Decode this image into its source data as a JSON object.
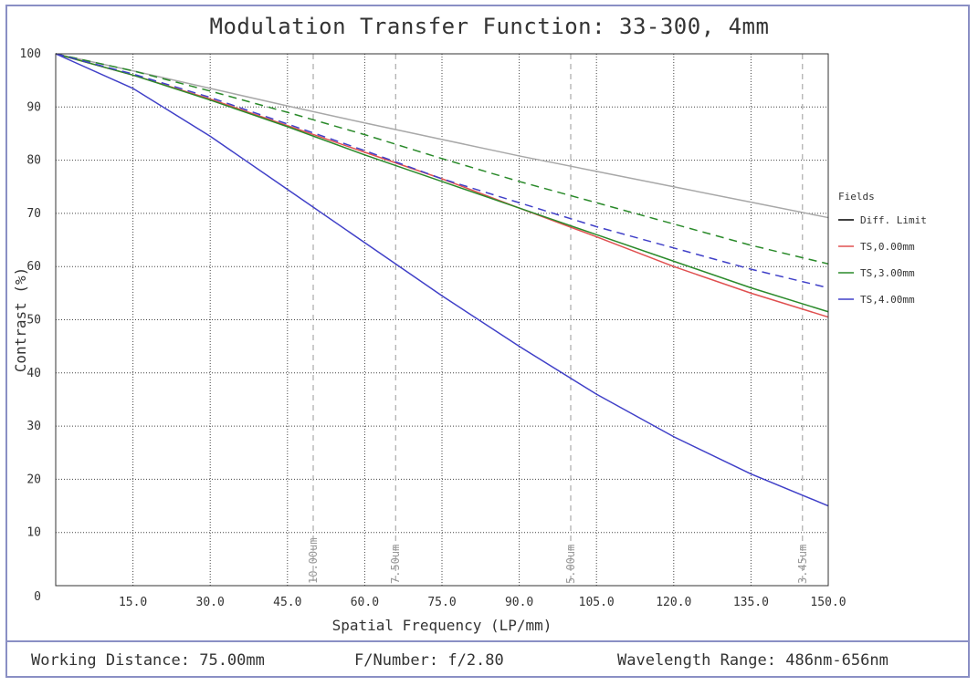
{
  "chart_data": {
    "type": "line",
    "title": "Modulation Transfer Function: 33-300, 4mm",
    "xlabel": "Spatial Frequency (LP/mm)",
    "ylabel": "Contrast (%)",
    "xlim": [
      0,
      150
    ],
    "ylim": [
      0,
      100
    ],
    "xticks": [
      15,
      30,
      45,
      60,
      75,
      90,
      105,
      120,
      135,
      150
    ],
    "xtick_labels": [
      "15.0",
      "30.0",
      "45.0",
      "60.0",
      "75.0",
      "90.0",
      "105.0",
      "120.0",
      "135.0",
      "150.0"
    ],
    "yticks": [
      0,
      10,
      20,
      30,
      40,
      50,
      60,
      70,
      80,
      90,
      100
    ],
    "ytick_labels": [
      "0",
      "10",
      "20",
      "30",
      "40",
      "50",
      "60",
      "70",
      "80",
      "90",
      "100"
    ],
    "grid": true,
    "legend_title": "Fields",
    "legend_position": "right",
    "legend": [
      {
        "label": "Diff. Limit",
        "color": "#000000",
        "dash": "solid"
      },
      {
        "label": "TS,0.00mm",
        "color": "#e05050",
        "dash": "solid"
      },
      {
        "label": "TS,3.00mm",
        "color": "#2a8a2a",
        "dash": "solid"
      },
      {
        "label": "TS,4.00mm",
        "color": "#4040c8",
        "dash": "solid"
      }
    ],
    "x": [
      0,
      15,
      30,
      45,
      60,
      75,
      90,
      105,
      120,
      135,
      150
    ],
    "series": [
      {
        "color": "#a8a8a8",
        "dash": "solid",
        "values": [
          100,
          96.8,
          93.5,
          90.2,
          87.0,
          83.9,
          80.8,
          77.9,
          75.0,
          72.1,
          69.2
        ]
      },
      {
        "color": "#e05050",
        "dash": "solid",
        "values": [
          100,
          96.0,
          91.5,
          86.5,
          81.5,
          76.5,
          71.0,
          65.6,
          60.0,
          55.0,
          50.5
        ]
      },
      {
        "color": "#2a8a2a",
        "dash": "solid",
        "values": [
          100,
          96.0,
          91.3,
          86.3,
          81.0,
          76.0,
          71.0,
          66.0,
          61.0,
          56.0,
          51.5
        ]
      },
      {
        "color": "#2a8a2a",
        "dash": "dashed",
        "values": [
          100,
          96.8,
          93.0,
          89.0,
          84.8,
          80.3,
          76.0,
          72.0,
          68.0,
          64.0,
          60.5
        ]
      },
      {
        "color": "#4040c8",
        "dash": "dashed",
        "values": [
          100,
          96.2,
          91.8,
          86.8,
          81.8,
          76.5,
          72.0,
          67.5,
          63.5,
          59.5,
          56.0
        ]
      },
      {
        "color": "#4040c8",
        "dash": "solid",
        "values": [
          100,
          93.5,
          84.5,
          74.5,
          64.5,
          54.5,
          45.0,
          36.0,
          28.0,
          21.0,
          15.0
        ]
      }
    ],
    "vlines": [
      {
        "x": 50.0,
        "label": "10.00um"
      },
      {
        "x": 66.0,
        "label": "7.50um"
      },
      {
        "x": 100.0,
        "label": "5.00um"
      },
      {
        "x": 145.0,
        "label": "3.45um"
      }
    ]
  },
  "footer": {
    "working_distance": "Working Distance: 75.00mm",
    "f_number": "F/Number: f/2.80",
    "wavelength": "Wavelength Range: 486nm-656nm"
  }
}
